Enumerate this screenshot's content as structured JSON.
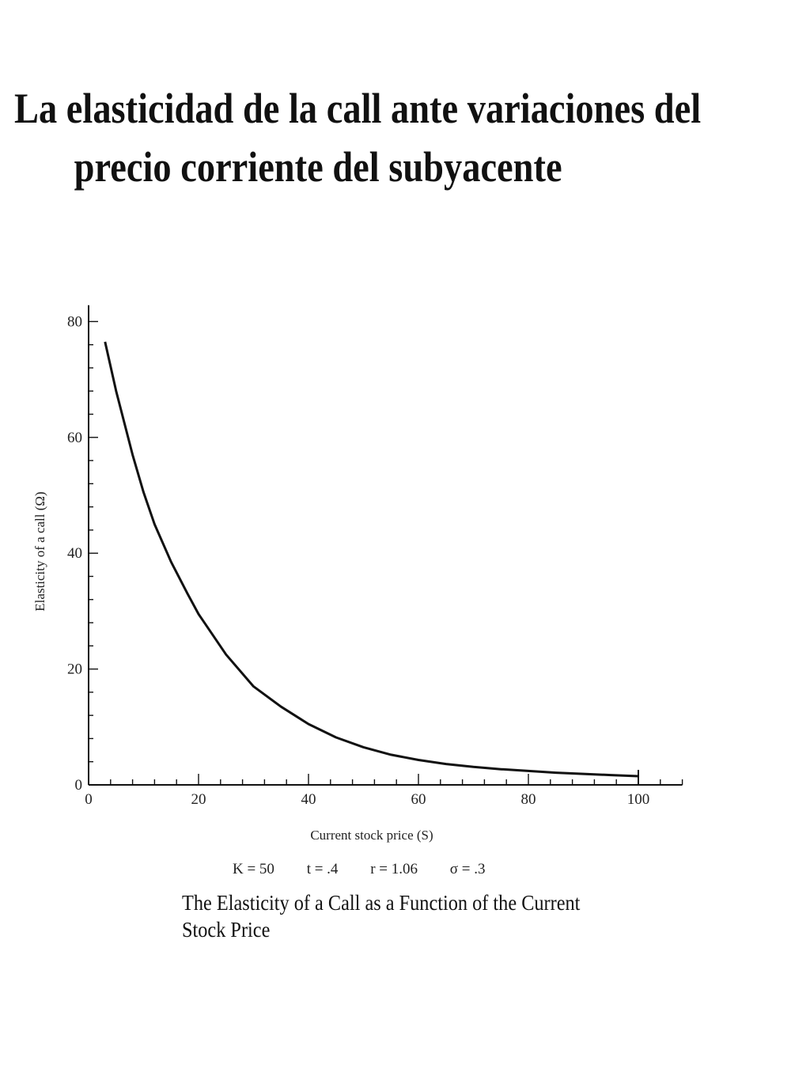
{
  "page": {
    "title_line1": "La elasticidad de la call ante variaciones del",
    "title_line2": "precio corriente del subyacente"
  },
  "chart_data": {
    "type": "line",
    "xlabel": "Current stock price (S)",
    "ylabel": "Elasticity of a call (Ω)",
    "xlim": [
      0,
      108
    ],
    "ylim": [
      0,
      82
    ],
    "x_ticks": [
      0,
      20,
      40,
      60,
      80,
      100
    ],
    "y_ticks": [
      0,
      20,
      40,
      60,
      80
    ],
    "grid": false,
    "series": [
      {
        "x": [
          3,
          5,
          8,
          10,
          12,
          15,
          18,
          20,
          25,
          30,
          35,
          40,
          45,
          50,
          55,
          60,
          65,
          70,
          75,
          80,
          85,
          90,
          95,
          100
        ],
        "values": [
          76.5,
          68,
          57,
          50.5,
          45,
          38.5,
          33,
          29.5,
          22.5,
          17,
          13.5,
          10.5,
          8.2,
          6.5,
          5.2,
          4.3,
          3.6,
          3.1,
          2.7,
          2.4,
          2.1,
          1.9,
          1.7,
          1.5
        ]
      }
    ],
    "parameters": [
      "K = 50",
      "t = .4",
      "r = 1.06",
      "σ = .3"
    ],
    "caption": "The Elasticity of a Call as a Function of the Current Stock Price"
  }
}
